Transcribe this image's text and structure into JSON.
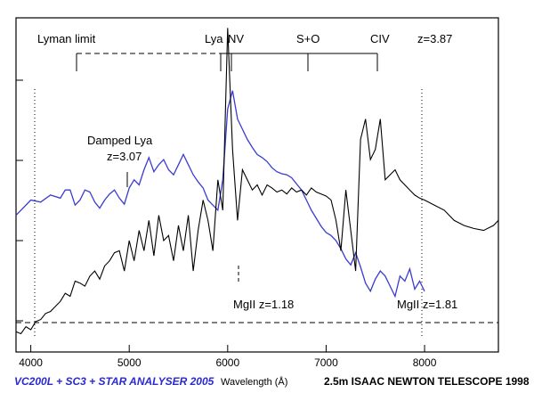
{
  "chart_data": {
    "type": "line",
    "xlim": [
      3850,
      8750
    ],
    "x_ticks": [
      4000,
      5000,
      6000,
      7000,
      8000
    ],
    "xlabel": "Wavelength (Å)",
    "grid": false,
    "colors": {
      "blue_series": "#3b3bd1",
      "black_series": "#000000",
      "footer_left": "#2a2ad0"
    },
    "series": [
      {
        "color": "#3b3bd1",
        "x": [
          3850,
          3900,
          4000,
          4100,
          4200,
          4300,
          4350,
          4400,
          4450,
          4500,
          4550,
          4600,
          4650,
          4700,
          4750,
          4800,
          4850,
          4900,
          4950,
          5000,
          5050,
          5100,
          5150,
          5200,
          5250,
          5300,
          5350,
          5400,
          5450,
          5500,
          5550,
          5600,
          5650,
          5700,
          5750,
          5800,
          5850,
          5900,
          5950,
          6000,
          6050,
          6100,
          6150,
          6200,
          6250,
          6300,
          6350,
          6400,
          6450,
          6500,
          6550,
          6600,
          6650,
          6700,
          6750,
          6800,
          6850,
          6900,
          6950,
          7000,
          7050,
          7100,
          7150,
          7200,
          7250,
          7300,
          7350,
          7400,
          7450,
          7500,
          7550,
          7600,
          7650,
          7700,
          7750,
          7800,
          7850,
          7900,
          7950,
          8000
        ],
        "y": [
          0.55,
          0.6,
          0.7,
          0.68,
          0.75,
          0.72,
          0.8,
          0.8,
          0.65,
          0.7,
          0.8,
          0.78,
          0.68,
          0.62,
          0.7,
          0.76,
          0.8,
          0.72,
          0.66,
          0.82,
          0.9,
          0.85,
          1.0,
          1.12,
          0.98,
          1.05,
          1.1,
          1.0,
          0.95,
          1.05,
          1.15,
          1.05,
          0.95,
          0.88,
          0.82,
          0.7,
          0.65,
          0.6,
          0.9,
          1.6,
          1.78,
          1.5,
          1.4,
          1.3,
          1.22,
          1.15,
          1.12,
          1.08,
          1.02,
          0.98,
          0.96,
          0.95,
          0.92,
          0.86,
          0.8,
          0.7,
          0.6,
          0.52,
          0.44,
          0.38,
          0.35,
          0.3,
          0.22,
          0.12,
          0.06,
          0.18,
          0.04,
          -0.12,
          -0.2,
          -0.08,
          0.0,
          -0.05,
          -0.15,
          -0.25,
          -0.05,
          -0.1,
          0.02,
          -0.18,
          -0.1,
          -0.2
        ]
      },
      {
        "color": "#000000",
        "x": [
          3850,
          3900,
          3950,
          4000,
          4050,
          4100,
          4150,
          4200,
          4250,
          4300,
          4350,
          4400,
          4450,
          4500,
          4550,
          4600,
          4650,
          4700,
          4750,
          4800,
          4850,
          4900,
          4950,
          5000,
          5050,
          5100,
          5150,
          5200,
          5250,
          5300,
          5350,
          5400,
          5450,
          5500,
          5550,
          5600,
          5650,
          5700,
          5750,
          5800,
          5850,
          5900,
          5950,
          6000,
          6050,
          6100,
          6150,
          6200,
          6250,
          6300,
          6350,
          6400,
          6450,
          6500,
          6550,
          6600,
          6650,
          6700,
          6750,
          6800,
          6850,
          6900,
          6950,
          7000,
          7050,
          7100,
          7150,
          7200,
          7250,
          7300,
          7350,
          7400,
          7450,
          7500,
          7550,
          7600,
          7650,
          7700,
          7750,
          7800,
          7850,
          7900,
          7950,
          8000,
          8100,
          8200,
          8300,
          8400,
          8500,
          8600,
          8700,
          8750
        ],
        "y": [
          -0.6,
          -0.62,
          -0.55,
          -0.58,
          -0.5,
          -0.48,
          -0.42,
          -0.4,
          -0.35,
          -0.3,
          -0.22,
          -0.25,
          -0.1,
          -0.12,
          -0.15,
          -0.05,
          0.0,
          -0.08,
          0.05,
          0.1,
          0.18,
          0.2,
          0.0,
          0.3,
          0.1,
          0.4,
          0.2,
          0.5,
          0.15,
          0.55,
          0.3,
          0.35,
          0.1,
          0.45,
          0.2,
          0.55,
          0.0,
          0.4,
          0.7,
          0.5,
          0.2,
          0.9,
          0.6,
          2.4,
          1.2,
          0.5,
          1.0,
          0.9,
          0.8,
          0.85,
          0.75,
          0.85,
          0.82,
          0.78,
          0.8,
          0.76,
          0.82,
          0.78,
          0.8,
          0.75,
          0.82,
          0.78,
          0.76,
          0.74,
          0.7,
          0.5,
          0.2,
          0.8,
          0.4,
          0.0,
          1.3,
          1.5,
          1.1,
          1.2,
          1.5,
          0.9,
          0.95,
          1.0,
          0.9,
          0.85,
          0.8,
          0.75,
          0.72,
          0.7,
          0.65,
          0.6,
          0.5,
          0.45,
          0.42,
          0.4,
          0.45,
          0.5
        ]
      }
    ],
    "annotations": [
      "Lyman limit",
      "Lya",
      "NV",
      "S+O",
      "CIV",
      "z=3.87",
      "Damped Lya",
      "z=3.07",
      "MgII z=1.18",
      "MgII z=1.81"
    ]
  },
  "footer": {
    "left": "VC200L + SC3 + STAR ANALYSER 2005",
    "center": "Wavelength (Å)",
    "right": "2.5m ISAAC NEWTON TELESCOPE 1998"
  }
}
